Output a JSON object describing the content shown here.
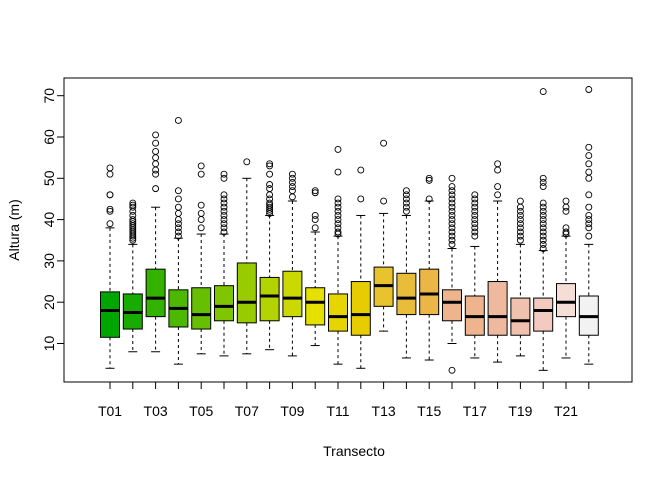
{
  "chart_data": {
    "type": "boxplot",
    "title": "",
    "xlabel": "Transecto",
    "ylabel": "Altura (m)",
    "ylim": [
      0,
      74
    ],
    "y_ticks": [
      10,
      20,
      30,
      40,
      50,
      60,
      70
    ],
    "grid": false,
    "legend": "none",
    "categories": [
      "T01",
      "T02",
      "T03",
      "T04",
      "T05",
      "T06",
      "T07",
      "T08",
      "T09",
      "T10",
      "T11",
      "T12",
      "T13",
      "T14",
      "T15",
      "T16",
      "T17",
      "T18",
      "T19",
      "T20",
      "T21",
      "T22"
    ],
    "x_tick_labels": [
      "T01",
      "",
      "T03",
      "",
      "T05",
      "",
      "T07",
      "",
      "T09",
      "",
      "T11",
      "",
      "T13",
      "",
      "T15",
      "",
      "T17",
      "",
      "T19",
      "",
      "T21",
      ""
    ],
    "boxes": [
      {
        "name": "T01",
        "color": "#00A600",
        "min": 4,
        "q1": 11.5,
        "median": 18,
        "q3": 22.5,
        "max": 38,
        "outliers": [
          39,
          42,
          42.5,
          46,
          46,
          51,
          52.5
        ]
      },
      {
        "name": "T02",
        "color": "#19AC00",
        "min": 8,
        "q1": 13.5,
        "median": 17.5,
        "q3": 22,
        "max": 34,
        "outliers": [
          35,
          35.5,
          36,
          36.5,
          37,
          37.5,
          38,
          38.5,
          39,
          39.5,
          40,
          41,
          42,
          43,
          43.5,
          44
        ]
      },
      {
        "name": "T03",
        "color": "#33B200",
        "min": 8,
        "q1": 16.5,
        "median": 21,
        "q3": 28,
        "max": 43,
        "outliers": [
          47.5,
          51,
          52,
          53.5,
          55,
          56.5,
          58.5,
          60.5
        ]
      },
      {
        "name": "T04",
        "color": "#4CB900",
        "min": 5,
        "q1": 14,
        "median": 18.5,
        "q3": 23,
        "max": 35.5,
        "outliers": [
          36,
          37,
          38,
          39,
          40,
          41.5,
          43,
          45,
          47,
          64
        ]
      },
      {
        "name": "T05",
        "color": "#66BF00",
        "min": 7.5,
        "q1": 13.5,
        "median": 17,
        "q3": 23.5,
        "max": 36.5,
        "outliers": [
          38,
          40,
          41.5,
          43.5,
          51,
          53
        ]
      },
      {
        "name": "T06",
        "color": "#80C600",
        "min": 7,
        "q1": 15.5,
        "median": 19,
        "q3": 24,
        "max": 36.5,
        "outliers": [
          37,
          38,
          39,
          40,
          41,
          42,
          43,
          44,
          45,
          46,
          50,
          51
        ]
      },
      {
        "name": "T07",
        "color": "#99CC00",
        "min": 7.5,
        "q1": 15,
        "median": 20,
        "q3": 29.5,
        "max": 50,
        "outliers": [
          54
        ]
      },
      {
        "name": "T08",
        "color": "#B3D300",
        "min": 8.5,
        "q1": 15.5,
        "median": 21.5,
        "q3": 26,
        "max": 41,
        "outliers": [
          41.5,
          42,
          42.5,
          43,
          43.5,
          44,
          45,
          46,
          47.5,
          48.5,
          51,
          53,
          53.5
        ]
      },
      {
        "name": "T09",
        "color": "#CCD900",
        "min": 7,
        "q1": 16.5,
        "median": 21,
        "q3": 27.5,
        "max": 44.5,
        "outliers": [
          45.5,
          47,
          48,
          49,
          50,
          51
        ]
      },
      {
        "name": "T10",
        "color": "#E6E000",
        "min": 9.5,
        "q1": 14.5,
        "median": 20,
        "q3": 23.5,
        "max": 37,
        "outliers": [
          38,
          40,
          41,
          46.5,
          47
        ]
      },
      {
        "name": "T11",
        "color": "#E6D500",
        "min": 5,
        "q1": 13,
        "median": 16.5,
        "q3": 22,
        "max": 36,
        "outliers": [
          36.5,
          37,
          38,
          39,
          40,
          41,
          42,
          43,
          44,
          45,
          51.5,
          57
        ]
      },
      {
        "name": "T12",
        "color": "#E6CC00",
        "min": 4,
        "q1": 12,
        "median": 17,
        "q3": 25,
        "max": 41,
        "outliers": [
          45,
          52
        ]
      },
      {
        "name": "T13",
        "color": "#E8C32E",
        "min": 13,
        "q1": 19,
        "median": 24,
        "q3": 28.5,
        "max": 41.5,
        "outliers": [
          44.5,
          58.5
        ]
      },
      {
        "name": "T14",
        "color": "#E9BD3A",
        "min": 6.5,
        "q1": 17,
        "median": 21,
        "q3": 27,
        "max": 41,
        "outliers": [
          42,
          43,
          44,
          45,
          46,
          47
        ]
      },
      {
        "name": "T15",
        "color": "#EBB646",
        "min": 6,
        "q1": 17,
        "median": 22,
        "q3": 28,
        "max": 44.5,
        "outliers": [
          45,
          49.5,
          50
        ]
      },
      {
        "name": "T16",
        "color": "#EDB48E",
        "min": 10,
        "q1": 15.5,
        "median": 20,
        "q3": 23,
        "max": 33,
        "outliers": [
          3.5,
          34,
          35,
          36,
          37,
          38,
          39,
          40,
          41,
          42,
          43,
          44,
          45,
          46,
          47,
          48,
          50
        ]
      },
      {
        "name": "T17",
        "color": "#EDB48E",
        "min": 6.5,
        "q1": 12,
        "median": 16.5,
        "q3": 21.5,
        "max": 33.5,
        "outliers": [
          36,
          37,
          38,
          39,
          40,
          41,
          42,
          43,
          44,
          45,
          46
        ]
      },
      {
        "name": "T18",
        "color": "#EEB99F",
        "min": 5.5,
        "q1": 12,
        "median": 16.5,
        "q3": 25,
        "max": 44.5,
        "outliers": [
          46,
          48,
          52,
          53.5
        ]
      },
      {
        "name": "T19",
        "color": "#F0C1AF",
        "min": 7,
        "q1": 12,
        "median": 15.5,
        "q3": 21,
        "max": 34,
        "outliers": [
          35,
          36,
          37,
          38,
          39,
          40,
          41,
          42,
          43,
          44.5
        ]
      },
      {
        "name": "T20",
        "color": "#F2CAC0",
        "min": 3.5,
        "q1": 13,
        "median": 18,
        "q3": 21,
        "max": 32.5,
        "outliers": [
          33,
          34,
          35,
          36,
          37,
          38,
          39,
          40,
          41,
          42,
          43,
          44,
          48,
          49,
          50,
          71
        ]
      },
      {
        "name": "T21",
        "color": "#F5DED6",
        "min": 6.5,
        "q1": 16.5,
        "median": 20,
        "q3": 24.5,
        "max": 36,
        "outliers": [
          36.5,
          37,
          38,
          42,
          43,
          44.5
        ]
      },
      {
        "name": "T22",
        "color": "#F2F2F2",
        "min": 5,
        "q1": 12,
        "median": 16.5,
        "q3": 21.5,
        "max": 34,
        "outliers": [
          36,
          38,
          39,
          40,
          41,
          43,
          46,
          50,
          51.5,
          53.5,
          55.5,
          57.5,
          71.5
        ]
      }
    ]
  }
}
